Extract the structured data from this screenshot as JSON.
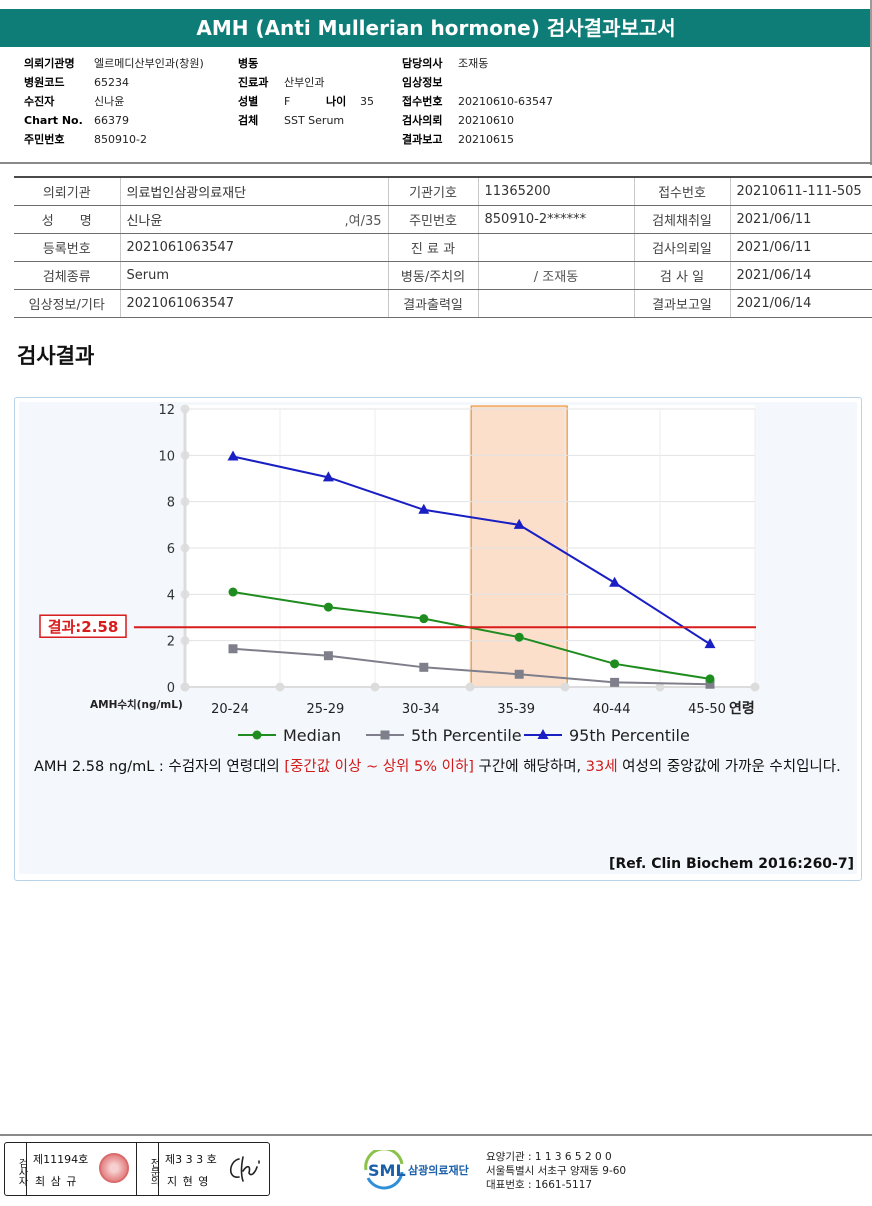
{
  "report_title": "AMH (Anti Mullerian hormone) 검사결과보고서",
  "header": {
    "col1": [
      {
        "k": "의뢰기관명",
        "v": "엘르메디산부인과(창원)"
      },
      {
        "k": "병원코드",
        "v": "65234"
      },
      {
        "k": "수진자",
        "v": "신나윤"
      },
      {
        "k": "Chart No.",
        "v": "66379"
      },
      {
        "k": "주민번호",
        "v": "850910-2"
      }
    ],
    "col2": [
      {
        "k": "병동",
        "v": ""
      },
      {
        "k": "진료과",
        "v": "산부인과"
      },
      {
        "k": "성별",
        "v": "F"
      },
      {
        "k": "검체",
        "v": "SST Serum"
      }
    ],
    "age_label": "나이",
    "age_value": "35",
    "col3": [
      {
        "k": "담당의사",
        "v": "조재동"
      },
      {
        "k": "임상정보",
        "v": ""
      },
      {
        "k": "접수번호",
        "v": "20210610-63547"
      },
      {
        "k": "검사의뢰",
        "v": "20210610"
      },
      {
        "k": "결과보고",
        "v": "20210615"
      }
    ]
  },
  "info_table": {
    "r1": [
      "의뢰기관",
      "의료법인삼광의료재단",
      "기관기호",
      "11365200",
      "접수번호",
      "20210611-111-505"
    ],
    "r2": [
      "성　　명",
      "신나윤",
      ",여/35",
      "주민번호",
      "850910-2******",
      "검체채취일",
      "2021/06/11"
    ],
    "r3": [
      "등록번호",
      "2021061063547",
      "진 료 과",
      "",
      "검사의뢰일",
      "2021/06/11"
    ],
    "r4": [
      "검체종류",
      "Serum",
      "병동/주치의",
      "/ 조재동",
      "검  사  일",
      "2021/06/14"
    ],
    "r5": [
      "임상정보/기타",
      "2021061063547",
      "결과출력일",
      "",
      "결과보고일",
      "2021/06/14"
    ]
  },
  "section_title": "검사결과",
  "chart_data": {
    "type": "line",
    "categories": [
      "20-24",
      "25-29",
      "30-34",
      "35-39",
      "40-44",
      "45-50"
    ],
    "x_axis_suffix": "연령",
    "ylabel": "AMH수치(ng/mL)",
    "ylim": [
      0,
      12
    ],
    "yticks": [
      0,
      2,
      4,
      6,
      8,
      10,
      12
    ],
    "grid": true,
    "legend_position": "bottom",
    "series": [
      {
        "name": "Median",
        "values": [
          4.1,
          3.45,
          2.95,
          2.15,
          1.0,
          0.35
        ],
        "color": "#1f8c1f",
        "marker": "circle"
      },
      {
        "name": "5th Percentile",
        "values": [
          1.65,
          1.35,
          0.85,
          0.55,
          0.2,
          0.12
        ],
        "color": "#7f7f8c",
        "marker": "square"
      },
      {
        "name": "95th Percentile",
        "values": [
          9.95,
          9.05,
          7.65,
          7.0,
          4.5,
          1.85
        ],
        "color": "#1a1fc4",
        "marker": "triangle"
      }
    ],
    "highlight_category": "35-39",
    "highlight_color": "#fbd9c2",
    "result_value": 2.58,
    "result_label": "결과:2.58",
    "result_color": "#d81b1b"
  },
  "description": {
    "part1": "AMH  2.58 ng/mL : 수검자의 연령대의 ",
    "red1": "[중간값 이상 ~ 상위 5% 이하]",
    "part2": "  구간에 해당하며, ",
    "red2": "33세",
    "part3": " 여성의 중앙값에 가까운 수치입니다."
  },
  "reference": "[Ref. Clin Biochem 2016:260-7]",
  "signatures": {
    "label1": "검사자",
    "no1": "제11194호",
    "name1": "최 삼 규",
    "label2": "전문의",
    "no2": "제3 3 3 호",
    "name2": "지 현 영"
  },
  "footer": {
    "logo_text": "SML",
    "org_name": "삼광의료재단",
    "line1": "요양기관 : 1 1 3 6 5 2 0 0",
    "line2": "서울특별시 서초구 양재동 9-60",
    "line3": "대표번호 : 1661-5117"
  }
}
